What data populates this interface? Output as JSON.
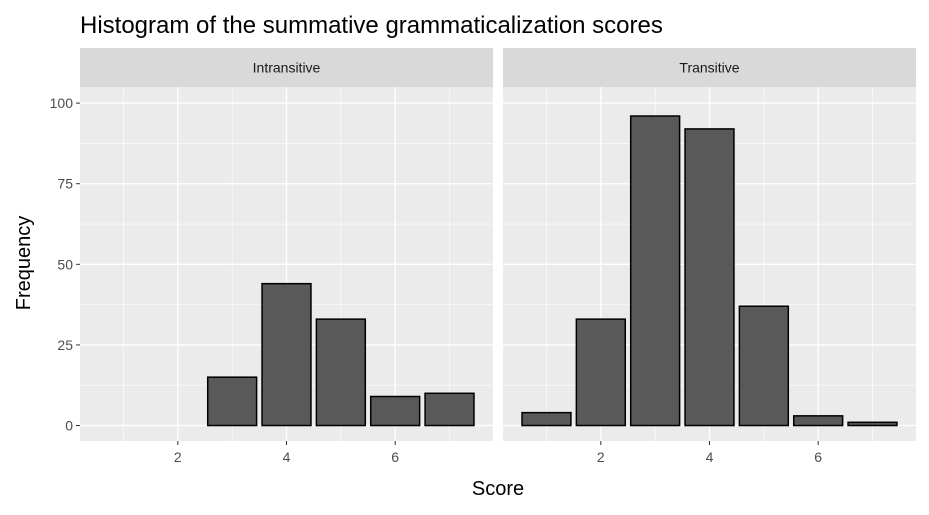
{
  "chart_data": {
    "type": "bar",
    "title": "Histogram of the summative grammaticalization scores",
    "xlabel": "Score",
    "ylabel": "Frequency",
    "x_ticks": [
      2,
      4,
      6
    ],
    "y_ticks": [
      0,
      25,
      50,
      75,
      100
    ],
    "xlim": [
      0.2,
      7.8
    ],
    "ylim": [
      -4.8,
      105
    ],
    "grid": true,
    "legend": "none",
    "colors": {
      "panel_background": "#ebebeb",
      "grid_line": "#ffffff",
      "bar_fill": "#595959",
      "bar_outline": "#000000",
      "strip_background": "#d9d9d9",
      "tick_label": "#4d4d4d"
    },
    "facets": [
      {
        "label": "Intransitive",
        "bars": [
          {
            "x": 3,
            "y": 15
          },
          {
            "x": 4,
            "y": 44
          },
          {
            "x": 5,
            "y": 33
          },
          {
            "x": 6,
            "y": 9
          },
          {
            "x": 7,
            "y": 10
          }
        ]
      },
      {
        "label": "Transitive",
        "bars": [
          {
            "x": 1,
            "y": 4
          },
          {
            "x": 2,
            "y": 33
          },
          {
            "x": 3,
            "y": 96
          },
          {
            "x": 4,
            "y": 92
          },
          {
            "x": 5,
            "y": 37
          },
          {
            "x": 6,
            "y": 3
          },
          {
            "x": 7,
            "y": 1
          }
        ]
      }
    ]
  }
}
